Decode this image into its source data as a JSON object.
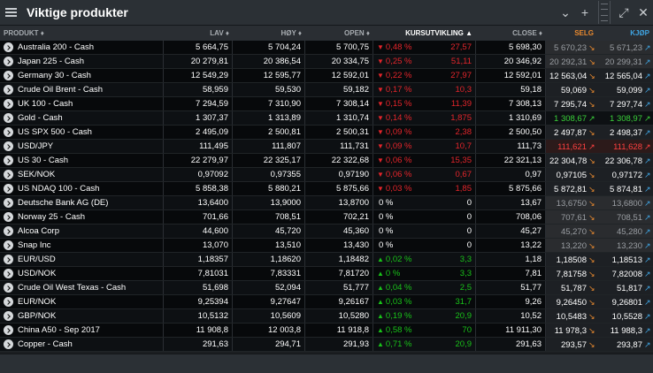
{
  "window": {
    "title": "Viktige produkter"
  },
  "header": {
    "produkt": "PRODUKT ♦",
    "lav": "LAV ♦",
    "hoy": "HØY ♦",
    "open": "OPEN ♦",
    "kursutvikling": "KURSUTVIKLING ▲",
    "close": "CLOSE ♦",
    "selg": "SELG",
    "kjop": "KJØP"
  },
  "colors": {
    "up": "#19c219",
    "down": "#e3252b",
    "selg": "#e8892f",
    "kjop": "#3fa4e2"
  },
  "rows": [
    {
      "name": "Australia 200 - Cash",
      "lav": "5 664,75",
      "hoy": "5 704,24",
      "open": "5 700,75",
      "pct": "0,48 %",
      "chg": "27,57",
      "close": "5 698,30",
      "sell": "5 670,23",
      "buy": "5 671,23",
      "dir": "down",
      "sellStyle": "muted"
    },
    {
      "name": "Japan 225 - Cash",
      "lav": "20 279,81",
      "hoy": "20 386,54",
      "open": "20 334,75",
      "pct": "0,25 %",
      "chg": "51,11",
      "close": "20 346,92",
      "sell": "20 292,31",
      "buy": "20 299,31",
      "dir": "down",
      "sellStyle": "muted"
    },
    {
      "name": "Germany 30 - Cash",
      "lav": "12 549,29",
      "hoy": "12 595,77",
      "open": "12 592,01",
      "pct": "0,22 %",
      "chg": "27,97",
      "close": "12 592,01",
      "sell": "12 563,04",
      "buy": "12 565,04",
      "dir": "down",
      "sellStyle": "plain"
    },
    {
      "name": "Crude Oil Brent - Cash",
      "lav": "58,959",
      "hoy": "59,530",
      "open": "59,182",
      "pct": "0,17 %",
      "chg": "10,3",
      "close": "59,18",
      "sell": "59,069",
      "buy": "59,099",
      "dir": "down",
      "sellStyle": "plain"
    },
    {
      "name": "UK 100 - Cash",
      "lav": "7 294,59",
      "hoy": "7 310,90",
      "open": "7 308,14",
      "pct": "0,15 %",
      "chg": "11,39",
      "close": "7 308,13",
      "sell": "7 295,74",
      "buy": "7 297,74",
      "dir": "down",
      "sellStyle": "plain"
    },
    {
      "name": "Gold - Cash",
      "lav": "1 307,37",
      "hoy": "1 313,89",
      "open": "1 310,74",
      "pct": "0,14 %",
      "chg": "1,875",
      "close": "1 310,69",
      "sell": "1 308,67",
      "buy": "1 308,97",
      "dir": "down",
      "sellStyle": "green"
    },
    {
      "name": "US SPX 500 - Cash",
      "lav": "2 495,09",
      "hoy": "2 500,81",
      "open": "2 500,31",
      "pct": "0,09 %",
      "chg": "2,38",
      "close": "2 500,50",
      "sell": "2 497,87",
      "buy": "2 498,37",
      "dir": "down",
      "sellStyle": "plain"
    },
    {
      "name": "USD/JPY",
      "lav": "111,495",
      "hoy": "111,807",
      "open": "111,731",
      "pct": "0,09 %",
      "chg": "10,7",
      "close": "111,73",
      "sell": "111,621",
      "buy": "111,628",
      "dir": "down",
      "sellStyle": "red"
    },
    {
      "name": "US 30 - Cash",
      "lav": "22 279,97",
      "hoy": "22 325,17",
      "open": "22 322,68",
      "pct": "0,06 %",
      "chg": "15,35",
      "close": "22 321,13",
      "sell": "22 304,78",
      "buy": "22 306,78",
      "dir": "down",
      "sellStyle": "plain"
    },
    {
      "name": "SEK/NOK",
      "lav": "0,97092",
      "hoy": "0,97355",
      "open": "0,97190",
      "pct": "0,06 %",
      "chg": "0,67",
      "close": "0,97",
      "sell": "0,97105",
      "buy": "0,97172",
      "dir": "down",
      "sellStyle": "plain"
    },
    {
      "name": "US NDAQ 100 - Cash",
      "lav": "5 858,38",
      "hoy": "5 880,21",
      "open": "5 875,66",
      "pct": "0,03 %",
      "chg": "1,85",
      "close": "5 875,66",
      "sell": "5 872,81",
      "buy": "5 874,81",
      "dir": "down",
      "sellStyle": "plain"
    },
    {
      "name": "Deutsche Bank AG (DE)",
      "lav": "13,6400",
      "hoy": "13,9000",
      "open": "13,8700",
      "pct": "0 %",
      "chg": "0",
      "close": "13,67",
      "sell": "13,6750",
      "buy": "13,6800",
      "dir": "zero",
      "sellStyle": "muted"
    },
    {
      "name": "Norway 25 - Cash",
      "lav": "701,66",
      "hoy": "708,51",
      "open": "702,21",
      "pct": "0 %",
      "chg": "0",
      "close": "708,06",
      "sell": "707,61",
      "buy": "708,51",
      "dir": "zero",
      "sellStyle": "muted"
    },
    {
      "name": "Alcoa Corp",
      "lav": "44,600",
      "hoy": "45,720",
      "open": "45,360",
      "pct": "0 %",
      "chg": "0",
      "close": "45,27",
      "sell": "45,270",
      "buy": "45,280",
      "dir": "zero",
      "sellStyle": "muted"
    },
    {
      "name": "Snap Inc",
      "lav": "13,070",
      "hoy": "13,510",
      "open": "13,430",
      "pct": "0 %",
      "chg": "0",
      "close": "13,22",
      "sell": "13,220",
      "buy": "13,230",
      "dir": "zero",
      "sellStyle": "muted"
    },
    {
      "name": "EUR/USD",
      "lav": "1,18357",
      "hoy": "1,18620",
      "open": "1,18482",
      "pct": "0,02 %",
      "chg": "3,3",
      "close": "1,18",
      "sell": "1,18508",
      "buy": "1,18513",
      "dir": "up",
      "sellStyle": "plain"
    },
    {
      "name": "USD/NOK",
      "lav": "7,81031",
      "hoy": "7,83331",
      "open": "7,81720",
      "pct": "0 %",
      "chg": "3,3",
      "close": "7,81",
      "sell": "7,81758",
      "buy": "7,82008",
      "dir": "up",
      "sellStyle": "plain"
    },
    {
      "name": "Crude Oil West Texas - Cash",
      "lav": "51,698",
      "hoy": "52,094",
      "open": "51,777",
      "pct": "0,04 %",
      "chg": "2,5",
      "close": "51,77",
      "sell": "51,787",
      "buy": "51,817",
      "dir": "up",
      "sellStyle": "plain"
    },
    {
      "name": "EUR/NOK",
      "lav": "9,25394",
      "hoy": "9,27647",
      "open": "9,26167",
      "pct": "0,03 %",
      "chg": "31,7",
      "close": "9,26",
      "sell": "9,26450",
      "buy": "9,26801",
      "dir": "up",
      "sellStyle": "plain"
    },
    {
      "name": "GBP/NOK",
      "lav": "10,5132",
      "hoy": "10,5609",
      "open": "10,5280",
      "pct": "0,19 %",
      "chg": "20,9",
      "close": "10,52",
      "sell": "10,5483",
      "buy": "10,5528",
      "dir": "up",
      "sellStyle": "plain"
    },
    {
      "name": "China A50 - Sep 2017",
      "lav": "11 908,8",
      "hoy": "12 003,8",
      "open": "11 918,8",
      "pct": "0,58 %",
      "chg": "70",
      "close": "11 911,30",
      "sell": "11 978,3",
      "buy": "11 988,3",
      "dir": "up",
      "sellStyle": "plain"
    },
    {
      "name": "Copper - Cash",
      "lav": "291,63",
      "hoy": "294,71",
      "open": "291,93",
      "pct": "0,71 %",
      "chg": "20,9",
      "close": "291,63",
      "sell": "293,57",
      "buy": "293,87",
      "dir": "up",
      "sellStyle": "plain"
    }
  ]
}
